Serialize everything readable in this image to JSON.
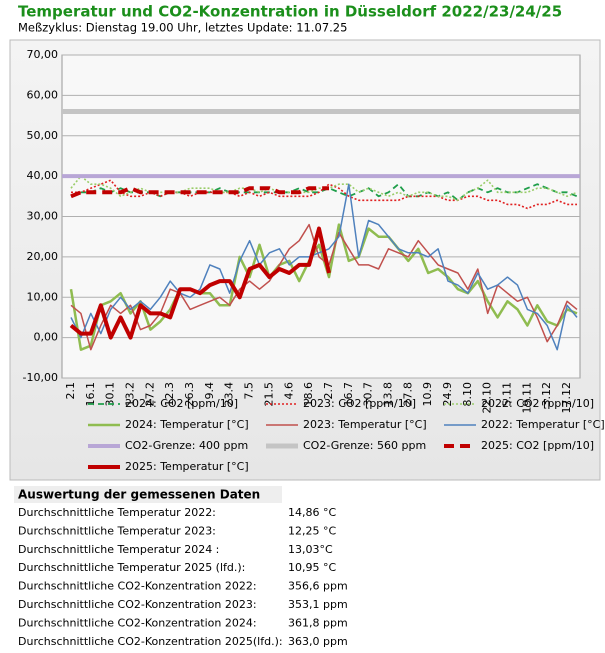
{
  "chart_data": {
    "type": "line",
    "title": "Temperatur und CO2-Konzentration in Düsseldorf 2022/23/24/25",
    "subtitle": "Meßzyklus: Dienstag 19.00 Uhr, letztes Update: 11.07.25",
    "categories": [
      "2.1",
      null,
      "16.1",
      null,
      "30.1",
      null,
      "13.2",
      null,
      "27.2",
      null,
      "12.3",
      null,
      "26.3",
      null,
      "9.4",
      null,
      "23.4",
      null,
      "7.5",
      null,
      "21.5",
      null,
      "4.6",
      null,
      "18.6",
      null,
      "2.7",
      null,
      "16.7",
      null,
      "30.7",
      null,
      "13.8",
      null,
      "27.8",
      null,
      "10.9",
      null,
      "24.9",
      null,
      "8.10",
      null,
      "22.10",
      null,
      "5.11",
      null,
      "19.11",
      null,
      "3.12",
      null,
      "17.12",
      null
    ],
    "ylim": [
      -10,
      70
    ],
    "yticks": [
      {
        "value": -10,
        "label": "-10,00"
      },
      {
        "value": 0,
        "label": "0,00"
      },
      {
        "value": 10,
        "label": "10,00"
      },
      {
        "value": 20,
        "label": "20,00"
      },
      {
        "value": 30,
        "label": "30,00"
      },
      {
        "value": 40,
        "label": "40,00"
      },
      {
        "value": 50,
        "label": "50,00"
      },
      {
        "value": 60,
        "label": "60,00"
      },
      {
        "value": 70,
        "label": "70,00"
      }
    ],
    "grid": true,
    "series": [
      {
        "name": "2024: CO2 [ppm/10]",
        "color": "#1f9e4a",
        "dash": "6 4",
        "width": 1.8,
        "values": [
          35,
          36,
          36,
          37,
          36,
          37,
          36,
          36,
          36,
          35,
          36,
          36,
          36,
          36,
          36,
          37,
          36,
          36,
          36,
          36,
          36,
          36,
          36,
          37,
          36,
          36,
          37,
          36,
          35,
          36,
          37,
          35,
          36,
          38,
          35,
          35,
          36,
          35,
          36,
          34,
          36,
          37,
          36,
          37,
          36,
          36,
          37,
          38,
          37,
          36,
          36,
          35
        ]
      },
      {
        "name": "2023: CO2 [ppm/10]",
        "color": "#e02020",
        "dash": "2 2",
        "width": 1.6,
        "values": [
          36,
          36,
          37,
          38,
          39,
          36,
          35,
          35,
          36,
          35,
          36,
          36,
          35,
          36,
          36,
          36,
          36,
          35,
          36,
          35,
          36,
          35,
          35,
          35,
          35,
          36,
          38,
          37,
          35,
          34,
          34,
          34,
          34,
          34,
          35,
          35,
          35,
          35,
          34,
          34,
          35,
          35,
          34,
          34,
          33,
          33,
          32,
          33,
          33,
          34,
          33,
          33
        ]
      },
      {
        "name": "2022: CO2 [ppm/10]",
        "color": "#9acd6a",
        "dash": "2 2",
        "width": 1.6,
        "values": [
          37,
          40,
          38,
          38,
          37,
          35,
          36,
          37,
          36,
          36,
          36,
          36,
          37,
          37,
          37,
          36,
          36,
          37,
          37,
          36,
          37,
          36,
          36,
          36,
          36,
          37,
          37,
          38,
          38,
          36,
          37,
          36,
          35,
          36,
          35,
          36,
          36,
          35,
          35,
          34,
          36,
          37,
          39,
          36,
          36,
          36,
          36,
          37,
          37,
          36,
          35,
          36
        ]
      },
      {
        "name": "2024: Temperatur [°C]",
        "color": "#8fbc50",
        "dash": "",
        "width": 2.5,
        "values": [
          12,
          -3,
          -2,
          8,
          9,
          11,
          6,
          9,
          2,
          4,
          7,
          12,
          12,
          11,
          11,
          8,
          8,
          20,
          15,
          23,
          15,
          18,
          19,
          14,
          19,
          23,
          15,
          28,
          19,
          20,
          27,
          25,
          25,
          22,
          19,
          22,
          16,
          17,
          15,
          12,
          11,
          14,
          9,
          5,
          9,
          7,
          3,
          8,
          4,
          3,
          7,
          6
        ]
      },
      {
        "name": "2023: Temperatur [°C]",
        "color": "#c0504d",
        "dash": "",
        "width": 1.5,
        "values": [
          8,
          6,
          -3,
          3,
          8,
          6,
          8,
          2,
          3,
          6,
          12,
          11,
          7,
          8,
          9,
          10,
          8,
          12,
          14,
          12,
          14,
          18,
          22,
          24,
          28,
          20,
          18,
          26,
          22,
          18,
          18,
          17,
          22,
          21,
          20,
          24,
          21,
          18,
          17,
          16,
          12,
          17,
          6,
          13,
          11,
          9,
          10,
          5,
          -1,
          3,
          9,
          7
        ]
      },
      {
        "name": "2022: Temperatur [°C]",
        "color": "#4f81bd",
        "dash": "",
        "width": 1.5,
        "values": [
          5,
          0,
          6,
          1,
          7,
          10,
          7,
          9,
          7,
          10,
          14,
          11,
          10,
          12,
          18,
          17,
          11,
          19,
          24,
          18,
          21,
          22,
          18,
          20,
          20,
          21,
          22,
          25,
          38,
          20,
          29,
          28,
          25,
          22,
          21,
          21,
          20,
          22,
          14,
          13,
          11,
          16,
          12,
          13,
          15,
          13,
          7,
          6,
          3,
          -3,
          8,
          5
        ]
      },
      {
        "name": "CO2-Grenze: 400 ppm",
        "color": "#b8a6d6",
        "dash": "",
        "width": 4,
        "value": 40
      },
      {
        "name": "CO2-Grenze: 560 ppm",
        "color": "#c4c4c4",
        "dash": "",
        "width": 5,
        "value": 56
      },
      {
        "name": "2025: CO2 [ppm/10]",
        "color": "#c00000",
        "dash": "10 6",
        "width": 4,
        "values": [
          35,
          36,
          36,
          36,
          36,
          36,
          37,
          36,
          36,
          36,
          36,
          36,
          36,
          36,
          36,
          36,
          36,
          36,
          37,
          37,
          37,
          36,
          36,
          36,
          37,
          37,
          37,
          null,
          null,
          null,
          null,
          null,
          null,
          null,
          null,
          null,
          null,
          null,
          null,
          null,
          null,
          null,
          null,
          null,
          null,
          null,
          null,
          null,
          null,
          null,
          null,
          null
        ]
      },
      {
        "name": "2025: Temperatur [°C]",
        "color": "#c00000",
        "dash": "",
        "width": 4,
        "values": [
          3,
          1,
          1,
          8,
          0,
          5,
          0,
          8,
          6,
          6,
          5,
          12,
          12,
          11,
          13,
          14,
          14,
          10,
          17,
          18,
          15,
          17,
          16,
          18,
          18,
          27,
          16,
          null,
          null,
          null,
          null,
          null,
          null,
          null,
          null,
          null,
          null,
          null,
          null,
          null,
          null,
          null,
          null,
          null,
          null,
          null,
          null,
          null,
          null,
          null,
          null,
          null
        ]
      }
    ]
  },
  "table": {
    "title": "Auswertung der gemessenen Daten",
    "rows": [
      [
        "Durchschnittliche Temperatur 2022:",
        "14,86 °C"
      ],
      [
        "Durchschnittliche Temperatur 2023:",
        "12,25 °C"
      ],
      [
        "Durchschnittliche Temperatur 2024 :",
        "13,03°C"
      ],
      [
        "Durchschnittliche Temperatur 2025 (lfd.):",
        "10,95 °C"
      ],
      [
        "Durchschnittliche CO2-Konzentration 2022:",
        "356,6 ppm"
      ],
      [
        "Durchschnittliche CO2-Konzentration 2023:",
        "353,1 ppm"
      ],
      [
        "Durchschnittliche CO2-Konzentration 2024:",
        "361,8 ppm"
      ],
      [
        "Durchschnittliche CO2-Konzentration 2025(lfd.):",
        "363,0 ppm"
      ]
    ]
  }
}
